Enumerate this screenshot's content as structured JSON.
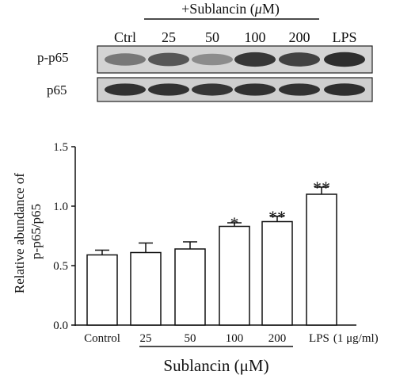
{
  "blot": {
    "treatment_label": "+Sublancin (",
    "treatment_unit_mu": "μ",
    "treatment_unit_rest": "M)",
    "lane_labels": [
      "Ctrl",
      "25",
      "50",
      "100",
      "200",
      "LPS"
    ],
    "row_labels": [
      "p-p65",
      "p65"
    ],
    "p_p65_band_intensity": [
      0.55,
      0.72,
      0.45,
      0.88,
      0.82,
      0.92
    ],
    "p65_band_intensity": [
      0.9,
      0.9,
      0.88,
      0.9,
      0.9,
      0.92
    ]
  },
  "chart_data": {
    "type": "bar",
    "categories": [
      "Control",
      "25",
      "50",
      "100",
      "200",
      "LPS"
    ],
    "lps_suffix": "(1 μg/ml)",
    "values": [
      0.59,
      0.61,
      0.64,
      0.83,
      0.87,
      1.1
    ],
    "errors": [
      0.04,
      0.08,
      0.06,
      0.03,
      0.045,
      0.06
    ],
    "significance": [
      "",
      "",
      "",
      "*",
      "**",
      "**"
    ],
    "ylabel_line1": "Relative abundance of",
    "ylabel_line2": "p-p65/p65",
    "xlabel": "Sublancin (μM)",
    "ylim": [
      0,
      1.5
    ],
    "yticks": [
      0.0,
      0.5,
      1.0,
      1.5
    ],
    "ytick_labels": [
      "0.0",
      "0.5",
      "1.0",
      "1.5"
    ],
    "grid": false,
    "bar_fill": "#ffffff",
    "bar_stroke": "#111111"
  }
}
